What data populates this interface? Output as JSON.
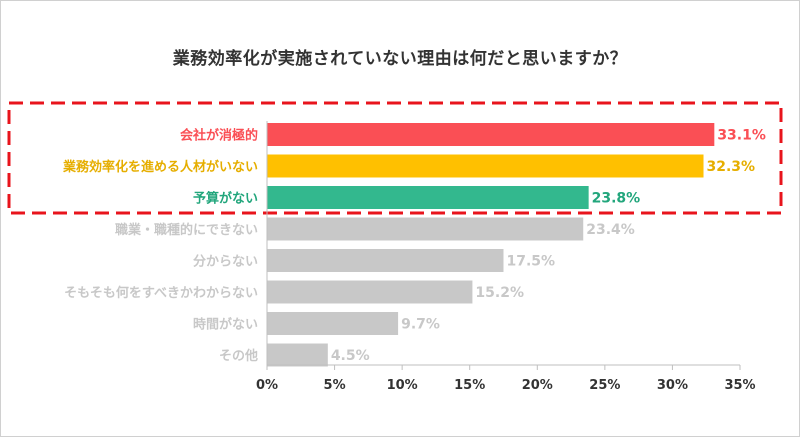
{
  "chart_data": {
    "type": "bar",
    "orientation": "horizontal",
    "title": "業務効率化が実施されていない理由は何だと思いますか？",
    "categories": [
      "会社が消極的",
      "業務効率化を進める人材がいない",
      "予算がない",
      "職業・職種的にできない",
      "分からない",
      "そもそも何をすべきかわからない",
      "時間がない",
      "その他"
    ],
    "values": [
      33.1,
      32.3,
      23.8,
      23.4,
      17.5,
      15.2,
      9.7,
      4.5
    ],
    "value_labels": [
      "33.1%",
      "32.3%",
      "23.8%",
      "23.4%",
      "17.5%",
      "15.2%",
      "9.7%",
      "4.5%"
    ],
    "bar_colors": [
      "#fa4f55",
      "#ffc000",
      "#33b88e",
      "#c8c8c8",
      "#c8c8c8",
      "#c8c8c8",
      "#c8c8c8",
      "#c8c8c8"
    ],
    "label_colors": [
      "#fa4f55",
      "#e6ae00",
      "#22a67c",
      "#c8c8c8",
      "#c8c8c8",
      "#c8c8c8",
      "#c8c8c8",
      "#c8c8c8"
    ],
    "xlim": [
      0,
      35
    ],
    "xticks": [
      "0%",
      "5%",
      "10%",
      "15%",
      "20%",
      "25%",
      "30%",
      "35%"
    ],
    "highlight_box_color": "#e8141c",
    "grid": false
  }
}
